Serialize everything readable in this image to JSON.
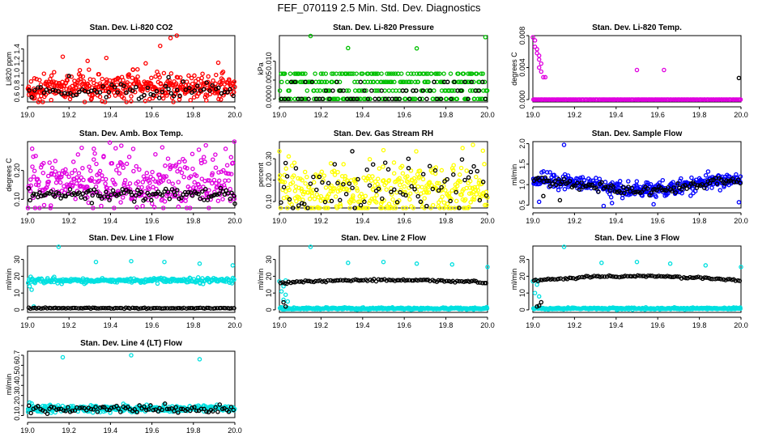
{
  "figure_title": "FEF_070119  2.5 Min. Std. Dev. Diagnostics",
  "colors": {
    "axis": "#000000",
    "primary_black": "#000000"
  },
  "chart_data": [
    {
      "type": "scatter",
      "title": "Stan. Dev. Li-820 CO2",
      "ylabel": "Li820 ppm",
      "xlim": [
        19.0,
        20.0
      ],
      "ylim": [
        0.52,
        1.62
      ],
      "xticks": [
        "19.0",
        "19.2",
        "19.4",
        "19.6",
        "19.8",
        "20.0"
      ],
      "yticks": [
        {
          "v": 0.6,
          "t": "0.6"
        },
        {
          "v": 0.8,
          "t": "0.8"
        },
        {
          "v": 1.0,
          "t": "1.0"
        },
        {
          "v": 1.2,
          "t": "1.2"
        },
        {
          "v": 1.4,
          "t": "1.4"
        }
      ],
      "series": [
        {
          "name": "colored",
          "color": "#ff0000",
          "n": 420,
          "base": 0.76,
          "spread": 0.11,
          "outliers": [
            [
              19.17,
              1.27
            ],
            [
              19.38,
              1.25
            ],
            [
              19.64,
              1.45
            ],
            [
              19.69,
              1.58
            ],
            [
              19.72,
              1.62
            ],
            [
              19.57,
              1.16
            ],
            [
              19.29,
              1.2
            ],
            [
              19.92,
              1.17
            ]
          ]
        },
        {
          "name": "black",
          "color": "#000000",
          "n": 70,
          "base": 0.7,
          "spread": 0.06,
          "outliers": [
            [
              19.2,
              0.95
            ],
            [
              19.68,
              0.93
            ]
          ]
        }
      ]
    },
    {
      "type": "scatter",
      "title": "Stan. Dev. Li-820 Pressure",
      "ylabel": "kPa",
      "xlim": [
        19.0,
        20.0
      ],
      "ylim": [
        -0.0008,
        0.0168
      ],
      "xticks": [
        "19.0",
        "19.2",
        "19.4",
        "19.6",
        "19.8",
        "20.0"
      ],
      "yticks": [
        {
          "v": 0.0,
          "t": "0.000"
        },
        {
          "v": 0.005,
          "t": "0.005"
        },
        {
          "v": 0.01,
          "t": "0.010"
        }
      ],
      "series": [
        {
          "name": "colored",
          "color": "#00c000",
          "n": 300,
          "mode": "bands",
          "bands": [
            0.0,
            0.0022,
            0.0045,
            0.0067
          ],
          "outliers": [
            [
              19.15,
              0.0167
            ],
            [
              19.33,
              0.0135
            ],
            [
              19.66,
              0.0134
            ],
            [
              19.99,
              0.0164
            ]
          ]
        },
        {
          "name": "black",
          "color": "#000000",
          "n": 60,
          "mode": "bands",
          "bands": [
            0.0,
            0.0,
            0.0022,
            0.0045
          ],
          "outliers": []
        }
      ]
    },
    {
      "type": "scatter",
      "title": "Stan. Dev. Li-820 Temp.",
      "ylabel": "degrees C",
      "xlim": [
        19.0,
        20.0
      ],
      "ylim": [
        -0.0003,
        0.008
      ],
      "xticks": [
        "19.0",
        "19.2",
        "19.4",
        "19.6",
        "19.8",
        "20.0"
      ],
      "yticks": [
        {
          "v": 0.0,
          "t": "0.000"
        },
        {
          "v": 0.004,
          "t": "0.004"
        },
        {
          "v": 0.008,
          "t": "0.008"
        }
      ],
      "series": [
        {
          "name": "colored",
          "color": "#e000e0",
          "n": 230,
          "mode": "flat",
          "flat": 0.0,
          "outliers": [
            [
              19.0,
              0.0078
            ],
            [
              19.01,
              0.0074
            ],
            [
              19.01,
              0.0066
            ],
            [
              19.02,
              0.0063
            ],
            [
              19.02,
              0.0058
            ],
            [
              19.03,
              0.0055
            ],
            [
              19.03,
              0.005
            ],
            [
              19.04,
              0.0045
            ],
            [
              19.03,
              0.004
            ],
            [
              19.04,
              0.0035
            ],
            [
              19.05,
              0.0028
            ],
            [
              19.06,
              0.0028
            ],
            [
              19.5,
              0.0037
            ],
            [
              19.63,
              0.0037
            ]
          ]
        },
        {
          "name": "black",
          "color": "#000000",
          "n": 0,
          "mode": "flat",
          "flat": 0.0,
          "outliers": [
            [
              19.99,
              0.0027
            ]
          ]
        }
      ]
    },
    {
      "type": "scatter",
      "title": "Stan. Dev. Amb. Box Temp.",
      "ylabel": "degrees C",
      "xlim": [
        19.0,
        20.0
      ],
      "ylim": [
        0.07,
        0.3
      ],
      "xticks": [
        "19.0",
        "19.2",
        "19.4",
        "19.6",
        "19.8",
        "20.0"
      ],
      "yticks": [
        {
          "v": 0.1,
          "t": "0.10"
        },
        {
          "v": 0.2,
          "t": "0.20"
        }
      ],
      "series": [
        {
          "name": "colored",
          "color": "#e000e0",
          "n": 360,
          "base": 0.16,
          "spread": 0.05,
          "outliers": [
            [
              19.86,
              0.287
            ],
            [
              19.65,
              0.28
            ],
            [
              19.32,
              0.275
            ]
          ]
        },
        {
          "name": "black",
          "color": "#000000",
          "n": 110,
          "base": 0.115,
          "spread": 0.01,
          "outliers": [
            [
              20.0,
              0.085
            ],
            [
              19.31,
              0.087
            ]
          ]
        }
      ]
    },
    {
      "type": "scatter",
      "title": "Stan. Dev. Gas Stream RH",
      "ylabel": "percent",
      "xlim": [
        19.0,
        20.0
      ],
      "ylim": [
        0.07,
        0.38
      ],
      "xticks": [
        "19.0",
        "19.2",
        "19.4",
        "19.6",
        "19.8",
        "20.0"
      ],
      "yticks": [
        {
          "v": 0.1,
          "t": "0.10"
        },
        {
          "v": 0.2,
          "t": "0.20"
        },
        {
          "v": 0.3,
          "t": "0.30"
        }
      ],
      "series": [
        {
          "name": "colored",
          "color": "#ffff00",
          "n": 360,
          "base": 0.15,
          "spread": 0.06,
          "outliers": [
            [
              19.0,
              0.335
            ],
            [
              19.93,
              0.365
            ],
            [
              19.88,
              0.35
            ],
            [
              19.5,
              0.34
            ]
          ]
        },
        {
          "name": "black",
          "color": "#000000",
          "n": 70,
          "base": 0.16,
          "spread": 0.06,
          "outliers": [
            [
              19.35,
              0.335
            ],
            [
              19.62,
              0.3
            ],
            [
              19.03,
              0.28
            ]
          ]
        }
      ]
    },
    {
      "type": "scatter",
      "title": "Stan. Dev. Sample Flow",
      "ylabel": "ml/min",
      "xlim": [
        19.0,
        20.0
      ],
      "ylim": [
        0.43,
        2.05
      ],
      "xticks": [
        "19.0",
        "19.2",
        "19.4",
        "19.6",
        "19.8",
        "20.0"
      ],
      "yticks": [
        {
          "v": 0.5,
          "t": "0.5"
        },
        {
          "v": 1.0,
          "t": "1.0"
        },
        {
          "v": 1.5,
          "t": "1.5"
        },
        {
          "v": 2.0,
          "t": "2.0"
        }
      ],
      "series": [
        {
          "name": "colored",
          "color": "#0000ff",
          "n": 380,
          "mode": "sag",
          "base": 1.0,
          "spread": 0.09,
          "outliers": [
            [
              19.15,
              1.97
            ],
            [
              19.34,
              0.48
            ],
            [
              19.38,
              0.55
            ],
            [
              19.99,
              0.57
            ],
            [
              19.58,
              0.52
            ],
            [
              19.03,
              0.58
            ]
          ]
        },
        {
          "name": "black",
          "color": "#000000",
          "n": 110,
          "mode": "sag",
          "base": 0.98,
          "spread": 0.05,
          "outliers": [
            [
              19.05,
              0.72
            ],
            [
              19.13,
              0.62
            ]
          ]
        }
      ]
    },
    {
      "type": "scatter",
      "title": "Stan. Dev. Line 1 Flow",
      "ylabel": "ml/min",
      "xlim": [
        19.0,
        20.0
      ],
      "ylim": [
        -1.5,
        38
      ],
      "xticks": [
        "19.0",
        "19.2",
        "19.4",
        "19.6",
        "19.8",
        "20.0"
      ],
      "yticks": [
        {
          "v": 0,
          "t": "0"
        },
        {
          "v": 10,
          "t": "10"
        },
        {
          "v": 20,
          "t": "20"
        },
        {
          "v": 30,
          "t": "30"
        }
      ],
      "series": [
        {
          "name": "colored",
          "color": "#00e0e0",
          "n": 280,
          "mode": "flat",
          "flat": 17.5,
          "jitter": 0.7,
          "outliers": [
            [
              19.15,
              37.5
            ],
            [
              19.33,
              28.5
            ],
            [
              19.5,
              29
            ],
            [
              19.66,
              28.5
            ],
            [
              19.83,
              27.5
            ],
            [
              19.99,
              26.5
            ],
            [
              19.02,
              12
            ],
            [
              19.01,
              14
            ],
            [
              19.03,
              2
            ]
          ]
        },
        {
          "name": "black",
          "color": "#000000",
          "n": 100,
          "mode": "flat",
          "flat": 1.0,
          "jitter": 0.15,
          "outliers": []
        }
      ]
    },
    {
      "type": "scatter",
      "title": "Stan. Dev. Line 2 Flow",
      "ylabel": "ml/min",
      "xlim": [
        19.0,
        20.0
      ],
      "ylim": [
        -1.5,
        38
      ],
      "xticks": [
        "19.0",
        "19.2",
        "19.4",
        "19.6",
        "19.8",
        "20.0"
      ],
      "yticks": [
        {
          "v": 0,
          "t": "0"
        },
        {
          "v": 10,
          "t": "10"
        },
        {
          "v": 20,
          "t": "20"
        },
        {
          "v": 30,
          "t": "30"
        }
      ],
      "series": [
        {
          "name": "colored",
          "color": "#00e0e0",
          "n": 300,
          "mode": "flat",
          "flat": 0.8,
          "jitter": 0.3,
          "outliers": [
            [
              19.15,
              37.5
            ],
            [
              19.33,
              28
            ],
            [
              19.5,
              28.5
            ],
            [
              19.66,
              27.5
            ],
            [
              19.83,
              27
            ],
            [
              20.0,
              25.5
            ],
            [
              19.0,
              17
            ],
            [
              19.02,
              14
            ],
            [
              19.01,
              11
            ],
            [
              19.03,
              9
            ],
            [
              19.02,
              6
            ],
            [
              19.04,
              5
            ],
            [
              19.03,
              17.5
            ]
          ]
        },
        {
          "name": "black",
          "color": "#000000",
          "n": 100,
          "mode": "arc",
          "flat": 16.2,
          "arc": 1.6,
          "jitter": 0.3,
          "outliers": [
            [
              19.03,
              2
            ],
            [
              19.02,
              4.5
            ]
          ]
        }
      ]
    },
    {
      "type": "scatter",
      "title": "Stan. Dev. Line 3 Flow",
      "ylabel": "ml/min",
      "xlim": [
        19.0,
        20.0
      ],
      "ylim": [
        -1.5,
        38
      ],
      "xticks": [
        "19.0",
        "19.2",
        "19.4",
        "19.6",
        "19.8",
        "20.0"
      ],
      "yticks": [
        {
          "v": 0,
          "t": "0"
        },
        {
          "v": 10,
          "t": "10"
        },
        {
          "v": 20,
          "t": "20"
        },
        {
          "v": 30,
          "t": "30"
        }
      ],
      "series": [
        {
          "name": "colored",
          "color": "#00e0e0",
          "n": 300,
          "mode": "flat",
          "flat": 0.8,
          "jitter": 0.3,
          "outliers": [
            [
              19.15,
              37.5
            ],
            [
              19.33,
              28
            ],
            [
              19.5,
              28.5
            ],
            [
              19.66,
              27.5
            ],
            [
              19.83,
              26.5
            ],
            [
              20.0,
              25.5
            ],
            [
              19.0,
              17
            ],
            [
              19.02,
              15
            ],
            [
              19.01,
              10
            ],
            [
              19.03,
              8
            ],
            [
              19.02,
              17.5
            ]
          ]
        },
        {
          "name": "black",
          "color": "#000000",
          "n": 100,
          "mode": "arc",
          "flat": 17.5,
          "arc": 2.6,
          "jitter": 0.3,
          "outliers": [
            [
              19.03,
              2.5
            ],
            [
              19.04,
              4.5
            ],
            [
              19.02,
              2
            ]
          ]
        }
      ]
    },
    {
      "type": "scatter",
      "title": "Stan. Dev. Line 4 (LT) Flow",
      "ylabel": "ml/min",
      "xlim": [
        19.0,
        20.0
      ],
      "ylim": [
        0.08,
        0.74
      ],
      "xticks": [
        "19.0",
        "19.2",
        "19.4",
        "19.6",
        "19.8",
        "20.0"
      ],
      "yticks": [
        {
          "v": 0.1,
          "t": "0.1"
        },
        {
          "v": 0.2,
          "t": "0.2"
        },
        {
          "v": 0.3,
          "t": "0.3"
        },
        {
          "v": 0.4,
          "t": "0.4"
        },
        {
          "v": 0.5,
          "t": "0.5"
        },
        {
          "v": 0.6,
          "t": "0.6"
        },
        {
          "v": 0.7,
          "t": "0.7"
        }
      ],
      "series": [
        {
          "name": "colored",
          "color": "#00e0e0",
          "n": 340,
          "base": 0.17,
          "spread": 0.018,
          "outliers": [
            [
              19.17,
              0.68
            ],
            [
              19.5,
              0.7
            ],
            [
              19.83,
              0.66
            ],
            [
              19.01,
              0.23
            ],
            [
              19.02,
              0.22
            ]
          ]
        },
        {
          "name": "black",
          "color": "#000000",
          "n": 90,
          "base": 0.165,
          "spread": 0.02,
          "outliers": []
        }
      ]
    }
  ]
}
